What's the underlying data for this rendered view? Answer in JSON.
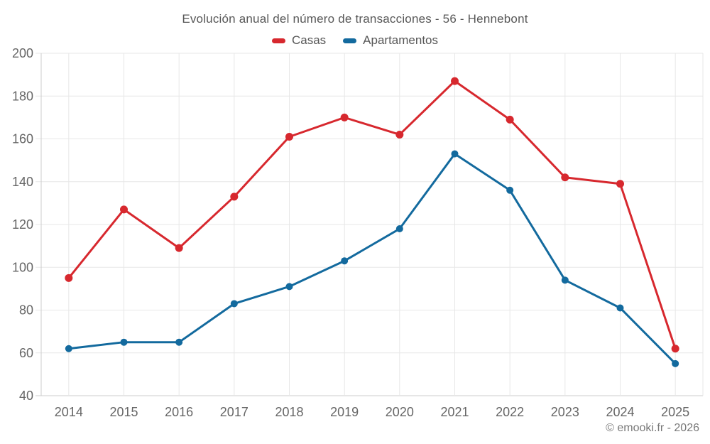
{
  "header": {
    "title": "Evolución anual del número de transacciones - 56 - Hennebont"
  },
  "footer": {
    "credits": "© emooki.fr - 2026"
  },
  "chart_data": {
    "type": "line",
    "title": "Evolución anual del número de transacciones - 56 - Hennebont",
    "categories": [
      "2014",
      "2015",
      "2016",
      "2017",
      "2018",
      "2019",
      "2020",
      "2021",
      "2022",
      "2023",
      "2024",
      "2025"
    ],
    "series": [
      {
        "name": "Casas",
        "color": "#d7282e",
        "values": [
          95,
          127,
          109,
          133,
          161,
          170,
          162,
          187,
          169,
          142,
          139,
          62
        ]
      },
      {
        "name": "Apartamentos",
        "color": "#136a9e",
        "values": [
          62,
          65,
          65,
          83,
          91,
          103,
          118,
          153,
          136,
          94,
          81,
          55
        ]
      }
    ],
    "xlabel": "",
    "ylabel": "",
    "ylim": [
      40,
      200
    ],
    "ytick_step": 20,
    "grid": true,
    "legend_position": "top",
    "styles": {
      "grid_color": "#e7e7e7",
      "axis_color": "#cccccc",
      "tick_color": "#666666",
      "title_color": "#575757",
      "credits_color": "#787878",
      "background": "#ffffff"
    }
  }
}
